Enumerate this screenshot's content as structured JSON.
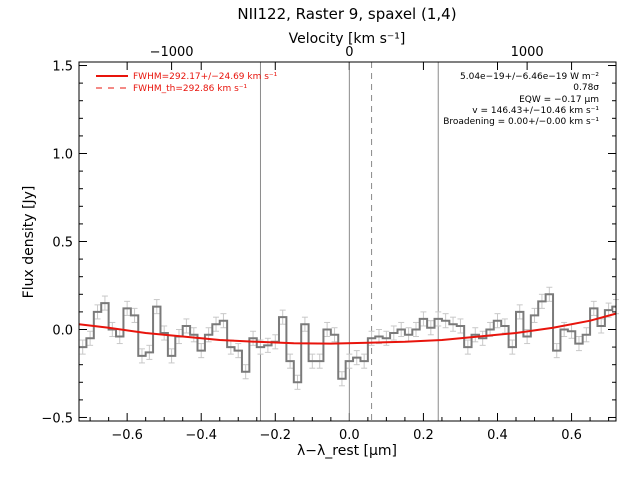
{
  "chart_data": {
    "type": "line",
    "title": "NII122, Raster 9, spaxel (1,4)",
    "xlabel": "λ−λ_rest [μm]",
    "ylabel": "Flux density [Jy]",
    "top_xlabel": "Velocity [km s⁻¹]",
    "xlim": [
      -0.73,
      0.72
    ],
    "ylim": [
      -0.52,
      1.52
    ],
    "x_ticks": [
      -0.6,
      -0.4,
      -0.2,
      0.0,
      0.2,
      0.4,
      0.6
    ],
    "x_tick_labels": [
      "−0.6",
      "−0.4",
      "−0.2",
      "0.0",
      "0.2",
      "0.4",
      "0.6"
    ],
    "y_ticks": [
      -0.5,
      0.0,
      0.5,
      1.0,
      1.5
    ],
    "y_tick_labels": [
      "−0.5",
      "0.0",
      "0.5",
      "1.0",
      "1.5"
    ],
    "top_ticks_velocity": [
      -1000,
      0,
      1000
    ],
    "top_tick_labels": [
      "−1000",
      "0",
      "1000"
    ],
    "legend_position": "top-left",
    "legend": [
      {
        "label": "FWHM=292.17+/−24.69 km s⁻¹",
        "style": "solid",
        "color": "#e8140c"
      },
      {
        "label": "FWHM_th=292.86 km s⁻¹",
        "style": "dashed",
        "color": "#e8140c"
      }
    ],
    "annotations": [
      "5.04e−19+/−6.46e−19 W m⁻²",
      "0.78σ",
      "EQW = −0.17 μm",
      "v = 146.43+/−10.46 km s⁻¹",
      "Broadening = 0.00+/−0.00 km s⁻¹"
    ],
    "vertical_lines": [
      {
        "x": -0.24,
        "style": "solid"
      },
      {
        "x": 0.0,
        "style": "solid"
      },
      {
        "x": 0.06,
        "style": "dashed"
      },
      {
        "x": 0.24,
        "style": "solid"
      }
    ],
    "spectrum_x": [
      -0.72,
      -0.7,
      -0.68,
      -0.66,
      -0.64,
      -0.62,
      -0.6,
      -0.58,
      -0.56,
      -0.54,
      -0.52,
      -0.5,
      -0.48,
      -0.46,
      -0.44,
      -0.42,
      -0.4,
      -0.38,
      -0.36,
      -0.34,
      -0.32,
      -0.3,
      -0.28,
      -0.26,
      -0.24,
      -0.22,
      -0.2,
      -0.18,
      -0.16,
      -0.14,
      -0.12,
      -0.1,
      -0.08,
      -0.06,
      -0.04,
      -0.02,
      0.0,
      0.02,
      0.04,
      0.06,
      0.08,
      0.1,
      0.12,
      0.14,
      0.16,
      0.18,
      0.2,
      0.22,
      0.24,
      0.26,
      0.28,
      0.3,
      0.32,
      0.34,
      0.36,
      0.38,
      0.4,
      0.42,
      0.44,
      0.46,
      0.48,
      0.5,
      0.52,
      0.54,
      0.56,
      0.58,
      0.6,
      0.62,
      0.64,
      0.66,
      0.68,
      0.7,
      0.72
    ],
    "spectrum_y": [
      -0.1,
      -0.05,
      0.1,
      0.15,
      0.0,
      -0.04,
      0.12,
      0.08,
      -0.15,
      -0.13,
      0.13,
      -0.02,
      -0.15,
      -0.04,
      0.02,
      -0.03,
      -0.12,
      -0.03,
      0.03,
      0.05,
      -0.1,
      -0.12,
      -0.24,
      -0.05,
      -0.1,
      -0.09,
      -0.07,
      0.07,
      -0.18,
      -0.3,
      0.03,
      -0.18,
      -0.18,
      0.0,
      -0.03,
      -0.28,
      -0.18,
      -0.16,
      -0.18,
      -0.05,
      -0.04,
      -0.05,
      -0.02,
      0.0,
      -0.03,
      0.0,
      0.06,
      0.01,
      0.06,
      0.05,
      0.03,
      0.02,
      -0.1,
      -0.03,
      -0.05,
      0.0,
      0.05,
      0.02,
      -0.1,
      0.1,
      -0.04,
      0.08,
      0.16,
      0.2,
      -0.12,
      0.0,
      -0.01,
      -0.08,
      -0.03,
      0.12,
      0.02,
      0.11,
      0.13
    ],
    "spectrum_err": 0.04,
    "fit_x": [
      -0.73,
      -0.65,
      -0.55,
      -0.45,
      -0.35,
      -0.25,
      -0.15,
      -0.05,
      0.05,
      0.15,
      0.25,
      0.35,
      0.45,
      0.55,
      0.65,
      0.72
    ],
    "fit_y": [
      0.03,
      0.01,
      -0.02,
      -0.04,
      -0.06,
      -0.07,
      -0.078,
      -0.08,
      -0.075,
      -0.07,
      -0.06,
      -0.04,
      -0.02,
      0.01,
      0.05,
      0.09
    ]
  }
}
